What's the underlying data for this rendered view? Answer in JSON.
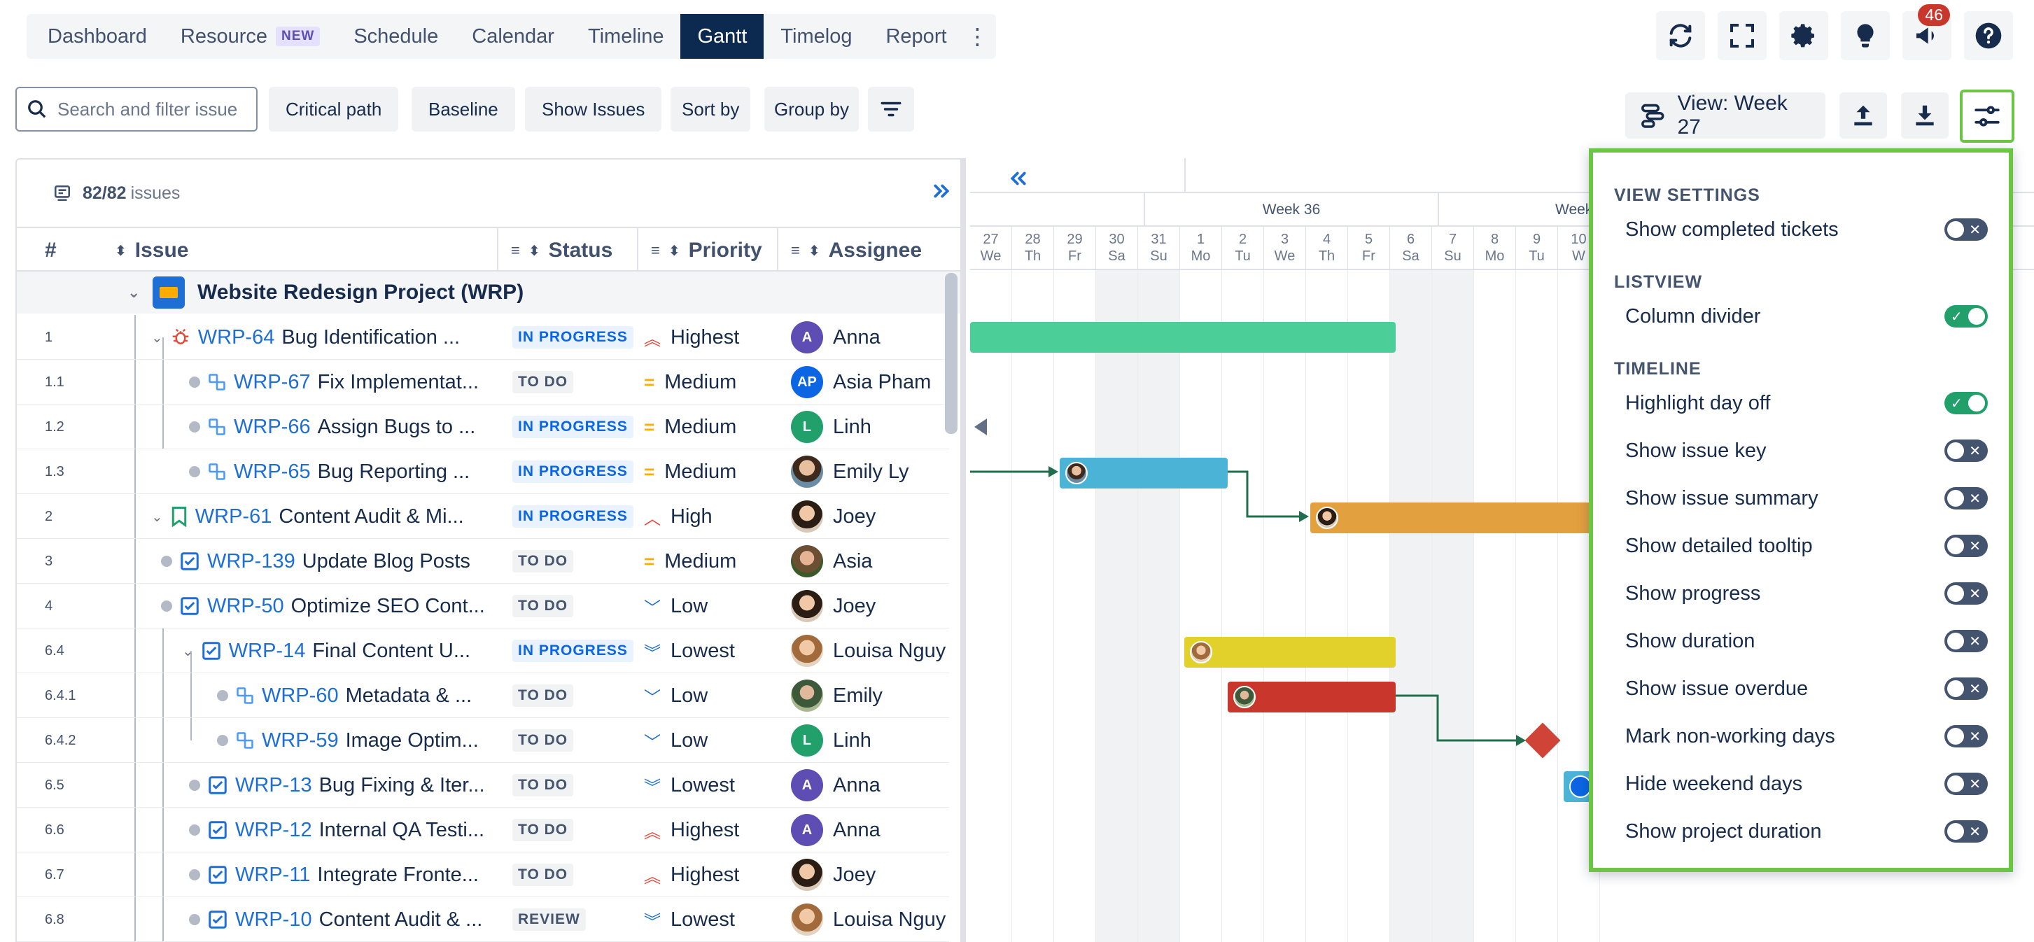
{
  "nav": {
    "tabs": [
      {
        "label": "Dashboard"
      },
      {
        "label": "Resource",
        "badge": "NEW"
      },
      {
        "label": "Schedule"
      },
      {
        "label": "Calendar"
      },
      {
        "label": "Timeline"
      },
      {
        "label": "Gantt",
        "active": true
      },
      {
        "label": "Timelog"
      },
      {
        "label": "Report"
      }
    ],
    "more": "⋮",
    "notification_count": "46"
  },
  "toolbar": {
    "search_placeholder": "Search and filter issue",
    "critical_path": "Critical path",
    "baseline": "Baseline",
    "show_issues": "Show Issues",
    "sort_by": "Sort by",
    "group_by": "Group by",
    "view_label": "View: Week 27"
  },
  "list": {
    "issue_count": "82/82",
    "issue_count_suffix": "issues",
    "headers": {
      "num": "#",
      "issue": "Issue",
      "status": "Status",
      "priority": "Priority",
      "assignee": "Assignee"
    },
    "project": "Website Redesign Project  (WRP)",
    "rows": [
      {
        "num": "1",
        "key": "WRP-64",
        "title": "Bug Identification ...",
        "status": "IN PROGRESS",
        "priority": "Highest",
        "assignee": "Anna"
      },
      {
        "num": "1.1",
        "key": "WRP-67",
        "title": "Fix Implementat...",
        "status": "TO DO",
        "priority": "Medium",
        "assignee": "Asia Pham",
        "avatar_text": "AP"
      },
      {
        "num": "1.2",
        "key": "WRP-66",
        "title": "Assign Bugs to ...",
        "status": "IN PROGRESS",
        "priority": "Medium",
        "assignee": "Linh"
      },
      {
        "num": "1.3",
        "key": "WRP-65",
        "title": "Bug Reporting ...",
        "status": "IN PROGRESS",
        "priority": "Medium",
        "assignee": "Emily Ly"
      },
      {
        "num": "2",
        "key": "WRP-61",
        "title": "Content Audit & Mi...",
        "status": "IN PROGRESS",
        "priority": "High",
        "assignee": "Joey"
      },
      {
        "num": "3",
        "key": "WRP-139",
        "title": "Update Blog Posts",
        "status": "TO DO",
        "priority": "Medium",
        "assignee": "Asia"
      },
      {
        "num": "4",
        "key": "WRP-50",
        "title": "Optimize SEO Cont...",
        "status": "TO DO",
        "priority": "Low",
        "assignee": "Joey"
      },
      {
        "num": "6.4",
        "key": "WRP-14",
        "title": "Final Content U...",
        "status": "IN PROGRESS",
        "priority": "Lowest",
        "assignee": "Louisa Nguy"
      },
      {
        "num": "6.4.1",
        "key": "WRP-60",
        "title": "Metadata & ...",
        "status": "TO DO",
        "priority": "Low",
        "assignee": "Emily"
      },
      {
        "num": "6.4.2",
        "key": "WRP-59",
        "title": "Image Optim...",
        "status": "TO DO",
        "priority": "Low",
        "assignee": "Linh"
      },
      {
        "num": "6.5",
        "key": "WRP-13",
        "title": "Bug Fixing & Iter...",
        "status": "TO DO",
        "priority": "Lowest",
        "assignee": "Anna"
      },
      {
        "num": "6.6",
        "key": "WRP-12",
        "title": "Internal QA Testi...",
        "status": "TO DO",
        "priority": "Highest",
        "assignee": "Anna"
      },
      {
        "num": "6.7",
        "key": "WRP-11",
        "title": "Integrate Fronte...",
        "status": "TO DO",
        "priority": "Highest",
        "assignee": "Joey"
      },
      {
        "num": "6.8",
        "key": "WRP-10",
        "title": "Content Audit & ...",
        "status": "REVIEW",
        "priority": "Lowest",
        "assignee": "Louisa Nguy"
      }
    ]
  },
  "gantt": {
    "weeks": [
      "Week 36",
      "Week"
    ],
    "days": [
      {
        "d": "27",
        "w": "We"
      },
      {
        "d": "28",
        "w": "Th"
      },
      {
        "d": "29",
        "w": "Fr"
      },
      {
        "d": "30",
        "w": "Sa"
      },
      {
        "d": "31",
        "w": "Su"
      },
      {
        "d": "1",
        "w": "Mo"
      },
      {
        "d": "2",
        "w": "Tu"
      },
      {
        "d": "3",
        "w": "We"
      },
      {
        "d": "4",
        "w": "Th"
      },
      {
        "d": "5",
        "w": "Fr"
      },
      {
        "d": "6",
        "w": "Sa"
      },
      {
        "d": "7",
        "w": "Su"
      },
      {
        "d": "8",
        "w": "Mo"
      },
      {
        "d": "9",
        "w": "Tu"
      },
      {
        "d": "10",
        "w": "W"
      }
    ]
  },
  "settings": {
    "sections": [
      {
        "title": "VIEW SETTINGS",
        "items": [
          {
            "label": "Show completed tickets",
            "on": false
          }
        ]
      },
      {
        "title": "LISTVIEW",
        "items": [
          {
            "label": "Column divider",
            "on": true
          }
        ]
      },
      {
        "title": "TIMELINE",
        "items": [
          {
            "label": "Highlight day off",
            "on": true
          },
          {
            "label": "Show issue key",
            "on": false
          },
          {
            "label": "Show issue summary",
            "on": false
          },
          {
            "label": "Show detailed tooltip",
            "on": false
          },
          {
            "label": "Show progress",
            "on": false
          },
          {
            "label": "Show duration",
            "on": false
          },
          {
            "label": "Show issue overdue",
            "on": false
          },
          {
            "label": "Mark non-working days",
            "on": false
          },
          {
            "label": "Hide weekend days",
            "on": false
          },
          {
            "label": "Show project duration",
            "on": false
          }
        ]
      }
    ]
  }
}
